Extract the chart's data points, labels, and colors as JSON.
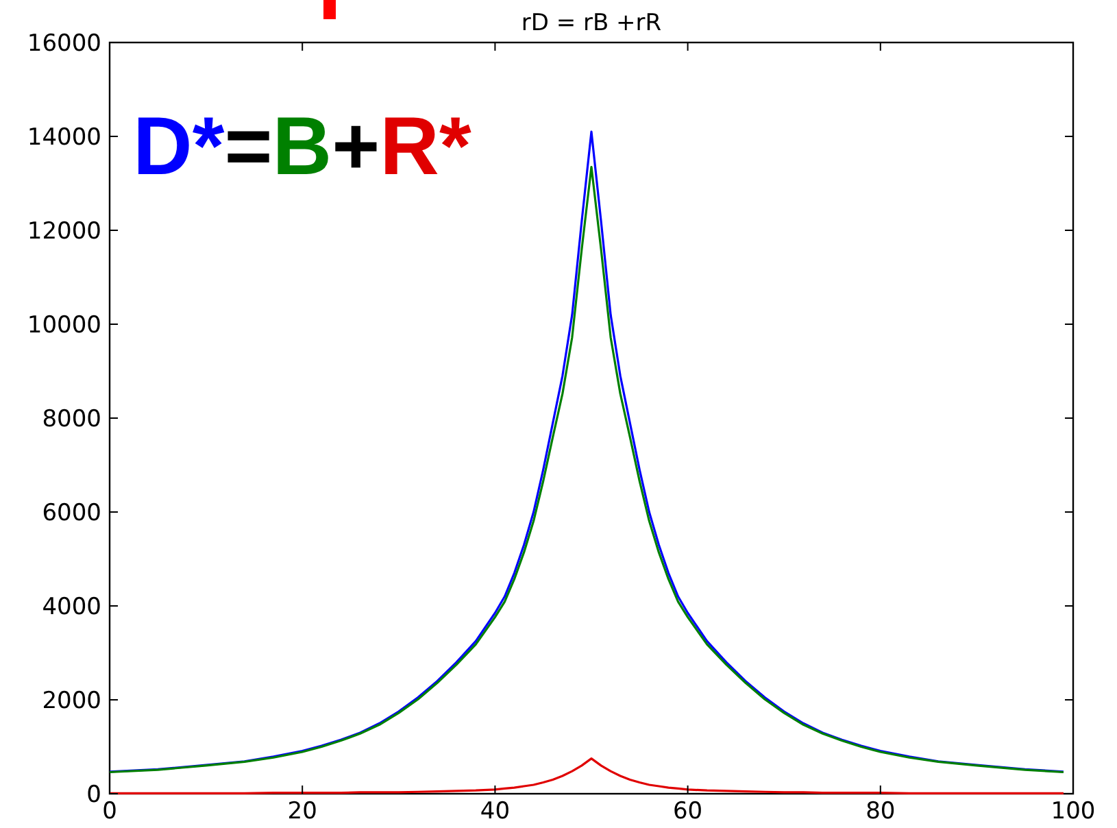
{
  "chart_data": {
    "type": "line",
    "title": "rD = rB +rR",
    "x": [
      0,
      5,
      10,
      14,
      17,
      20,
      22,
      24,
      26,
      28,
      30,
      32,
      34,
      36,
      38,
      40,
      41,
      42,
      43,
      44,
      45,
      46,
      47,
      48,
      49,
      50,
      51,
      52,
      53,
      54,
      55,
      56,
      57,
      58,
      59,
      60,
      62,
      64,
      66,
      68,
      70,
      72,
      74,
      76,
      78,
      80,
      83,
      86,
      90,
      95,
      99
    ],
    "series": [
      {
        "color": "#0000ff",
        "values": [
          470,
          520,
          610,
          690,
          790,
          910,
          1020,
          1150,
          1300,
          1500,
          1750,
          2050,
          2400,
          2800,
          3250,
          3850,
          4200,
          4700,
          5300,
          6000,
          6900,
          7900,
          8900,
          10200,
          12200,
          14100,
          12200,
          10200,
          8900,
          7900,
          6900,
          6000,
          5300,
          4700,
          4200,
          3850,
          3250,
          2800,
          2400,
          2050,
          1750,
          1500,
          1300,
          1150,
          1020,
          910,
          790,
          690,
          610,
          520,
          470
        ]
      },
      {
        "color": "#008000",
        "values": [
          460,
          510,
          600,
          680,
          770,
          890,
          1000,
          1130,
          1280,
          1470,
          1720,
          2010,
          2360,
          2750,
          3180,
          3760,
          4090,
          4570,
          5140,
          5810,
          6660,
          7600,
          8520,
          9720,
          11600,
          13350,
          11600,
          9720,
          8520,
          7600,
          6660,
          5810,
          5140,
          4570,
          4090,
          3760,
          3180,
          2750,
          2360,
          2010,
          1720,
          1470,
          1280,
          1130,
          1000,
          890,
          770,
          680,
          600,
          510,
          460
        ]
      },
      {
        "color": "#e00000",
        "values": [
          10,
          10,
          10,
          10,
          20,
          20,
          20,
          20,
          30,
          30,
          30,
          40,
          50,
          60,
          70,
          90,
          110,
          130,
          160,
          190,
          240,
          300,
          380,
          480,
          600,
          750,
          600,
          480,
          380,
          300,
          240,
          190,
          160,
          130,
          110,
          90,
          70,
          60,
          50,
          40,
          30,
          30,
          20,
          20,
          20,
          20,
          10,
          10,
          10,
          10,
          10
        ]
      }
    ],
    "annotations": [
      "D*",
      "=",
      "B",
      "+",
      "R*"
    ],
    "xlim": [
      0,
      100
    ],
    "xticks": [
      0,
      20,
      40,
      60,
      80,
      100
    ],
    "ylim": [
      0,
      16000
    ],
    "yticks": [
      0,
      2000,
      4000,
      6000,
      8000,
      10000,
      12000,
      14000,
      16000
    ],
    "grid": false,
    "line_style": "solid",
    "marker": "none"
  }
}
